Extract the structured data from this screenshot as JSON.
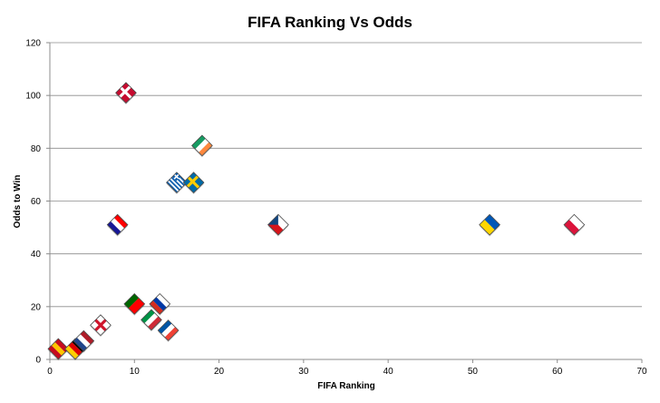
{
  "chart_data": {
    "type": "scatter",
    "title": "FIFA Ranking Vs Odds",
    "xlabel": "FIFA Ranking",
    "ylabel": "Odds to Win",
    "xlim": [
      0,
      70
    ],
    "ylim": [
      0,
      120
    ],
    "xticks": [
      0,
      10,
      20,
      30,
      40,
      50,
      60,
      70
    ],
    "yticks": [
      0,
      20,
      40,
      60,
      80,
      100,
      120
    ],
    "grid": "horizontal",
    "legend": "none",
    "points": [
      {
        "x": 1,
        "y": 4,
        "marker": "flag-spain-icon",
        "colors": [
          "#c60b1e",
          "#ffc400",
          "#c60b1e"
        ],
        "pattern": "h3"
      },
      {
        "x": 3,
        "y": 4,
        "marker": "flag-germany-icon",
        "colors": [
          "#000000",
          "#dd0000",
          "#ffce00"
        ],
        "pattern": "h3"
      },
      {
        "x": 4,
        "y": 7,
        "marker": "flag-netherlands-icon",
        "colors": [
          "#ae1c28",
          "#ffffff",
          "#21468b"
        ],
        "pattern": "h3"
      },
      {
        "x": 6,
        "y": 13,
        "marker": "flag-england-icon",
        "colors": [
          "#ffffff",
          "#cf142b"
        ],
        "pattern": "cross"
      },
      {
        "x": 8,
        "y": 51,
        "marker": "flag-croatia-icon",
        "colors": [
          "#ff0000",
          "#ffffff",
          "#171796"
        ],
        "pattern": "h3"
      },
      {
        "x": 9,
        "y": 101,
        "marker": "flag-denmark-icon",
        "colors": [
          "#c60c30",
          "#ffffff"
        ],
        "pattern": "nordic"
      },
      {
        "x": 10,
        "y": 21,
        "marker": "flag-portugal-icon",
        "colors": [
          "#006600",
          "#ff0000"
        ],
        "pattern": "v2"
      },
      {
        "x": 12,
        "y": 15,
        "marker": "flag-italy-icon",
        "colors": [
          "#009246",
          "#ffffff",
          "#ce2b37"
        ],
        "pattern": "v3"
      },
      {
        "x": 13,
        "y": 21,
        "marker": "flag-russia-icon",
        "colors": [
          "#ffffff",
          "#0039a6",
          "#d52b1e"
        ],
        "pattern": "h3"
      },
      {
        "x": 14,
        "y": 11,
        "marker": "flag-france-icon",
        "colors": [
          "#0055a4",
          "#ffffff",
          "#ef4135"
        ],
        "pattern": "v3"
      },
      {
        "x": 15,
        "y": 67,
        "marker": "flag-greece-icon",
        "colors": [
          "#0d5eaf",
          "#ffffff"
        ],
        "pattern": "stripes"
      },
      {
        "x": 17,
        "y": 67,
        "marker": "flag-sweden-icon",
        "colors": [
          "#006aa7",
          "#fecc00"
        ],
        "pattern": "nordic"
      },
      {
        "x": 18,
        "y": 81,
        "marker": "flag-ireland-icon",
        "colors": [
          "#169b62",
          "#ffffff",
          "#ff883e"
        ],
        "pattern": "v3"
      },
      {
        "x": 27,
        "y": 51,
        "marker": "flag-czech-icon",
        "colors": [
          "#ffffff",
          "#d7141a",
          "#11457e"
        ],
        "pattern": "czech"
      },
      {
        "x": 52,
        "y": 51,
        "marker": "flag-ukraine-icon",
        "colors": [
          "#0057b7",
          "#ffd700"
        ],
        "pattern": "h2"
      },
      {
        "x": 62,
        "y": 51,
        "marker": "flag-poland-icon",
        "colors": [
          "#ffffff",
          "#dc143c"
        ],
        "pattern": "h2"
      }
    ]
  }
}
